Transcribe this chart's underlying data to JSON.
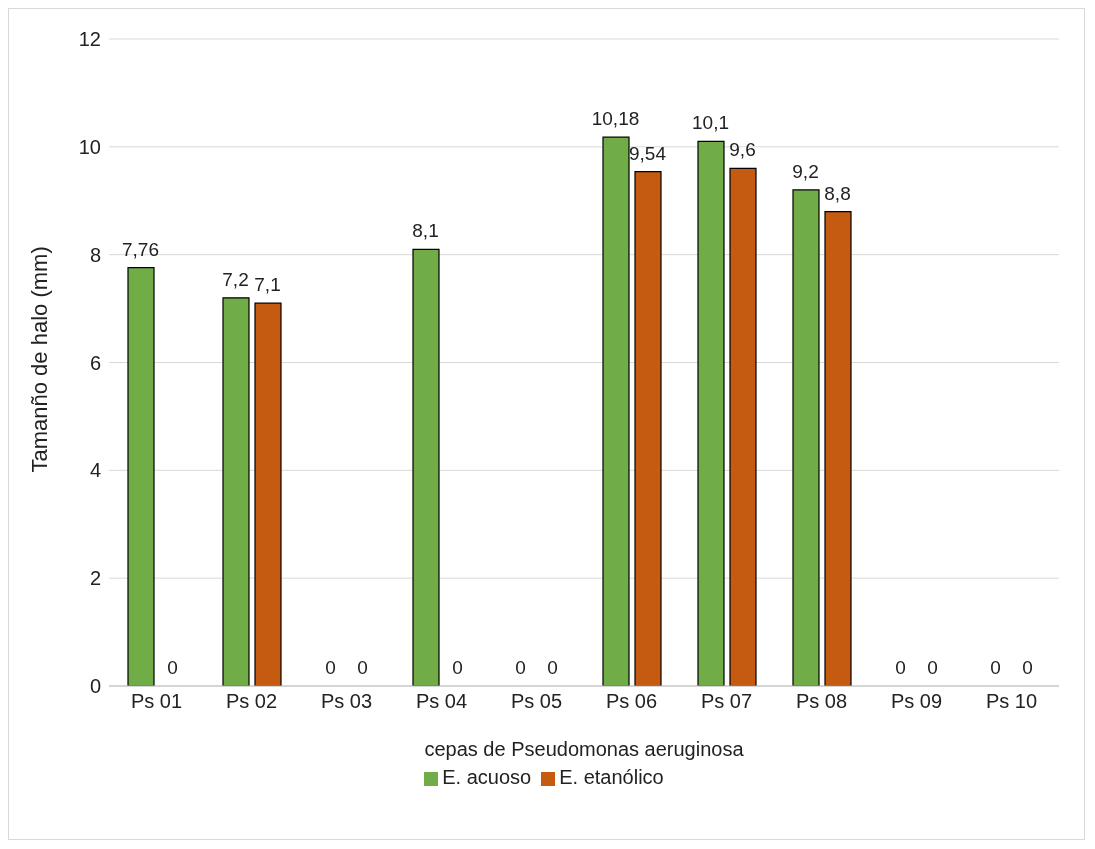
{
  "chart_data": {
    "type": "bar",
    "xlabel": "cepas de Pseudomonas aeruginosa",
    "ylabel": "Tamanño de halo (mm)",
    "categories": [
      "Ps 01",
      "Ps 02",
      "Ps 03",
      "Ps 04",
      "Ps 05",
      "Ps 06",
      "Ps 07",
      "Ps 08",
      "Ps 09",
      "Ps 10"
    ],
    "series": [
      {
        "name": "E. acuoso",
        "color": "#70ad47",
        "values": [
          7.76,
          7.2,
          0,
          8.1,
          0,
          10.18,
          10.1,
          9.2,
          0,
          0
        ],
        "value_labels": [
          "7,76",
          "7,2",
          "0",
          "8,1",
          "0",
          "10,18",
          "10,1",
          "9,2",
          "0",
          "0"
        ]
      },
      {
        "name": "E. etanólico",
        "color": "#c55a11",
        "values": [
          0,
          7.1,
          0,
          0,
          0,
          9.54,
          9.6,
          8.8,
          0,
          0
        ],
        "value_labels": [
          "0",
          "7,1",
          "0",
          "0",
          "0",
          "9,54",
          "9,6",
          "8,8",
          "0",
          "0"
        ]
      }
    ],
    "ylim": [
      0,
      12
    ],
    "yticks": [
      0,
      2,
      4,
      6,
      8,
      10,
      12
    ],
    "grid": "y",
    "legend": "bottom"
  }
}
